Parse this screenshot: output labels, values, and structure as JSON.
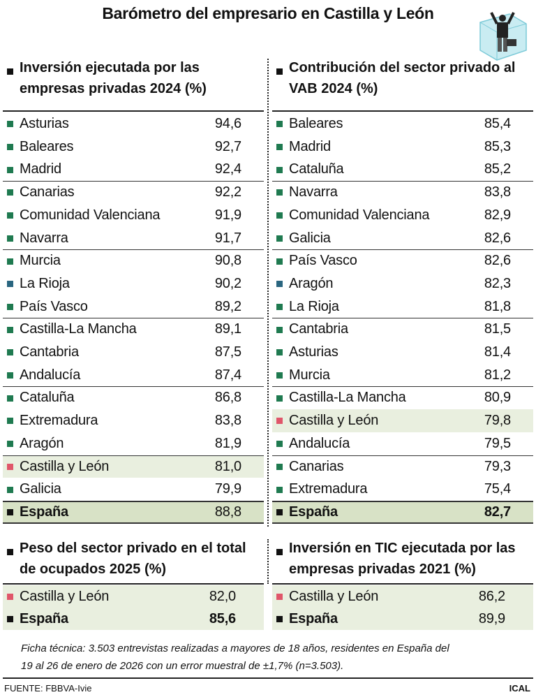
{
  "title": "Barómetro del empresario en Castilla y León",
  "tables": [
    {
      "title": "Inversión ejecutada por las empresas privadas 2024 (%)",
      "rows": [
        {
          "label": "Asturias",
          "value": "94,6",
          "color": "#1f7a50"
        },
        {
          "label": "Baleares",
          "value": "92,7",
          "color": "#1f7a50"
        },
        {
          "label": "Madrid",
          "value": "92,4",
          "color": "#1f7a50"
        },
        {
          "label": "Canarias",
          "value": "92,2",
          "color": "#1f7a50"
        },
        {
          "label": "Comunidad Valenciana",
          "value": "91,9",
          "color": "#1f7a50"
        },
        {
          "label": "Navarra",
          "value": "91,7",
          "color": "#1f7a50"
        },
        {
          "label": "Murcia",
          "value": "90,8",
          "color": "#1f7a50"
        },
        {
          "label": "La Rioja",
          "value": "90,2",
          "color": "#2a6680"
        },
        {
          "label": "País Vasco",
          "value": "89,2",
          "color": "#1f7a50"
        },
        {
          "label": "Castilla-La Mancha",
          "value": "89,1",
          "color": "#1f7a50"
        },
        {
          "label": "Cantabria",
          "value": "87,5",
          "color": "#1f7a50"
        },
        {
          "label": "Andalucía",
          "value": "87,4",
          "color": "#1f7a50"
        },
        {
          "label": "Cataluña",
          "value": "86,8",
          "color": "#1f7a50"
        },
        {
          "label": "Extremadura",
          "value": "83,8",
          "color": "#1f7a50"
        },
        {
          "label": "Aragón",
          "value": "81,9",
          "color": "#1f7a50"
        },
        {
          "label": "Castilla y León",
          "value": "81,0",
          "color": "#e0566a",
          "highlight": true
        },
        {
          "label": "Galicia",
          "value": "79,9",
          "color": "#1f7a50"
        }
      ],
      "total": {
        "label": "España",
        "value": "88,8",
        "value_bold": false
      }
    },
    {
      "title": "Contribución del sector privado al VAB 2024 (%)",
      "rows": [
        {
          "label": "Baleares",
          "value": "85,4",
          "color": "#1f7a50"
        },
        {
          "label": "Madrid",
          "value": "85,3",
          "color": "#1f7a50"
        },
        {
          "label": "Cataluña",
          "value": "85,2",
          "color": "#1f7a50"
        },
        {
          "label": "Navarra",
          "value": "83,8",
          "color": "#1f7a50"
        },
        {
          "label": "Comunidad Valenciana",
          "value": "82,9",
          "color": "#1f7a50"
        },
        {
          "label": "Galicia",
          "value": "82,6",
          "color": "#1f7a50"
        },
        {
          "label": "País Vasco",
          "value": "82,6",
          "color": "#1f7a50"
        },
        {
          "label": "Aragón",
          "value": "82,3",
          "color": "#2a6680"
        },
        {
          "label": "La Rioja",
          "value": "81,8",
          "color": "#1f7a50"
        },
        {
          "label": "Cantabria",
          "value": "81,5",
          "color": "#1f7a50"
        },
        {
          "label": "Asturias",
          "value": "81,4",
          "color": "#1f7a50"
        },
        {
          "label": "Murcia",
          "value": "81,2",
          "color": "#1f7a50"
        },
        {
          "label": "Castilla-La Mancha",
          "value": "80,9",
          "color": "#1f7a50"
        },
        {
          "label": "Castilla y León",
          "value": "79,8",
          "color": "#e0566a",
          "highlight": true
        },
        {
          "label": "Andalucía",
          "value": "79,5",
          "color": "#1f7a50"
        },
        {
          "label": "Canarias",
          "value": "79,3",
          "color": "#1f7a50"
        },
        {
          "label": "Extremadura",
          "value": "75,4",
          "color": "#1f7a50"
        }
      ],
      "total": {
        "label": "España",
        "value": "82,7",
        "value_bold": true
      }
    },
    {
      "title": "Peso del sector privado en el total de ocupados 2025 (%)",
      "rows": [
        {
          "label": "Castilla y León",
          "value": "82,0",
          "color": "#e0566a",
          "highlight": true
        }
      ],
      "total": {
        "label": "España",
        "value": "85,6",
        "value_bold": true
      }
    },
    {
      "title": "Inversión en TIC ejecutada por las empresas privadas 2021 (%)",
      "rows": [
        {
          "label": "Castilla y León",
          "value": "86,2",
          "color": "#e0566a",
          "highlight": true
        }
      ],
      "total": {
        "label": "España",
        "value": "89,9",
        "value_bold": false
      }
    }
  ],
  "note": "Ficha técnica: 3.503 entrevistas realizadas a mayores de 18 años, residentes en España del 19 al 26 de enero de 2026 con un error muestral de ±1,7% (n=3.503).",
  "source": "FUENTE: FBBVA-Ivie",
  "credit": "ICAL"
}
